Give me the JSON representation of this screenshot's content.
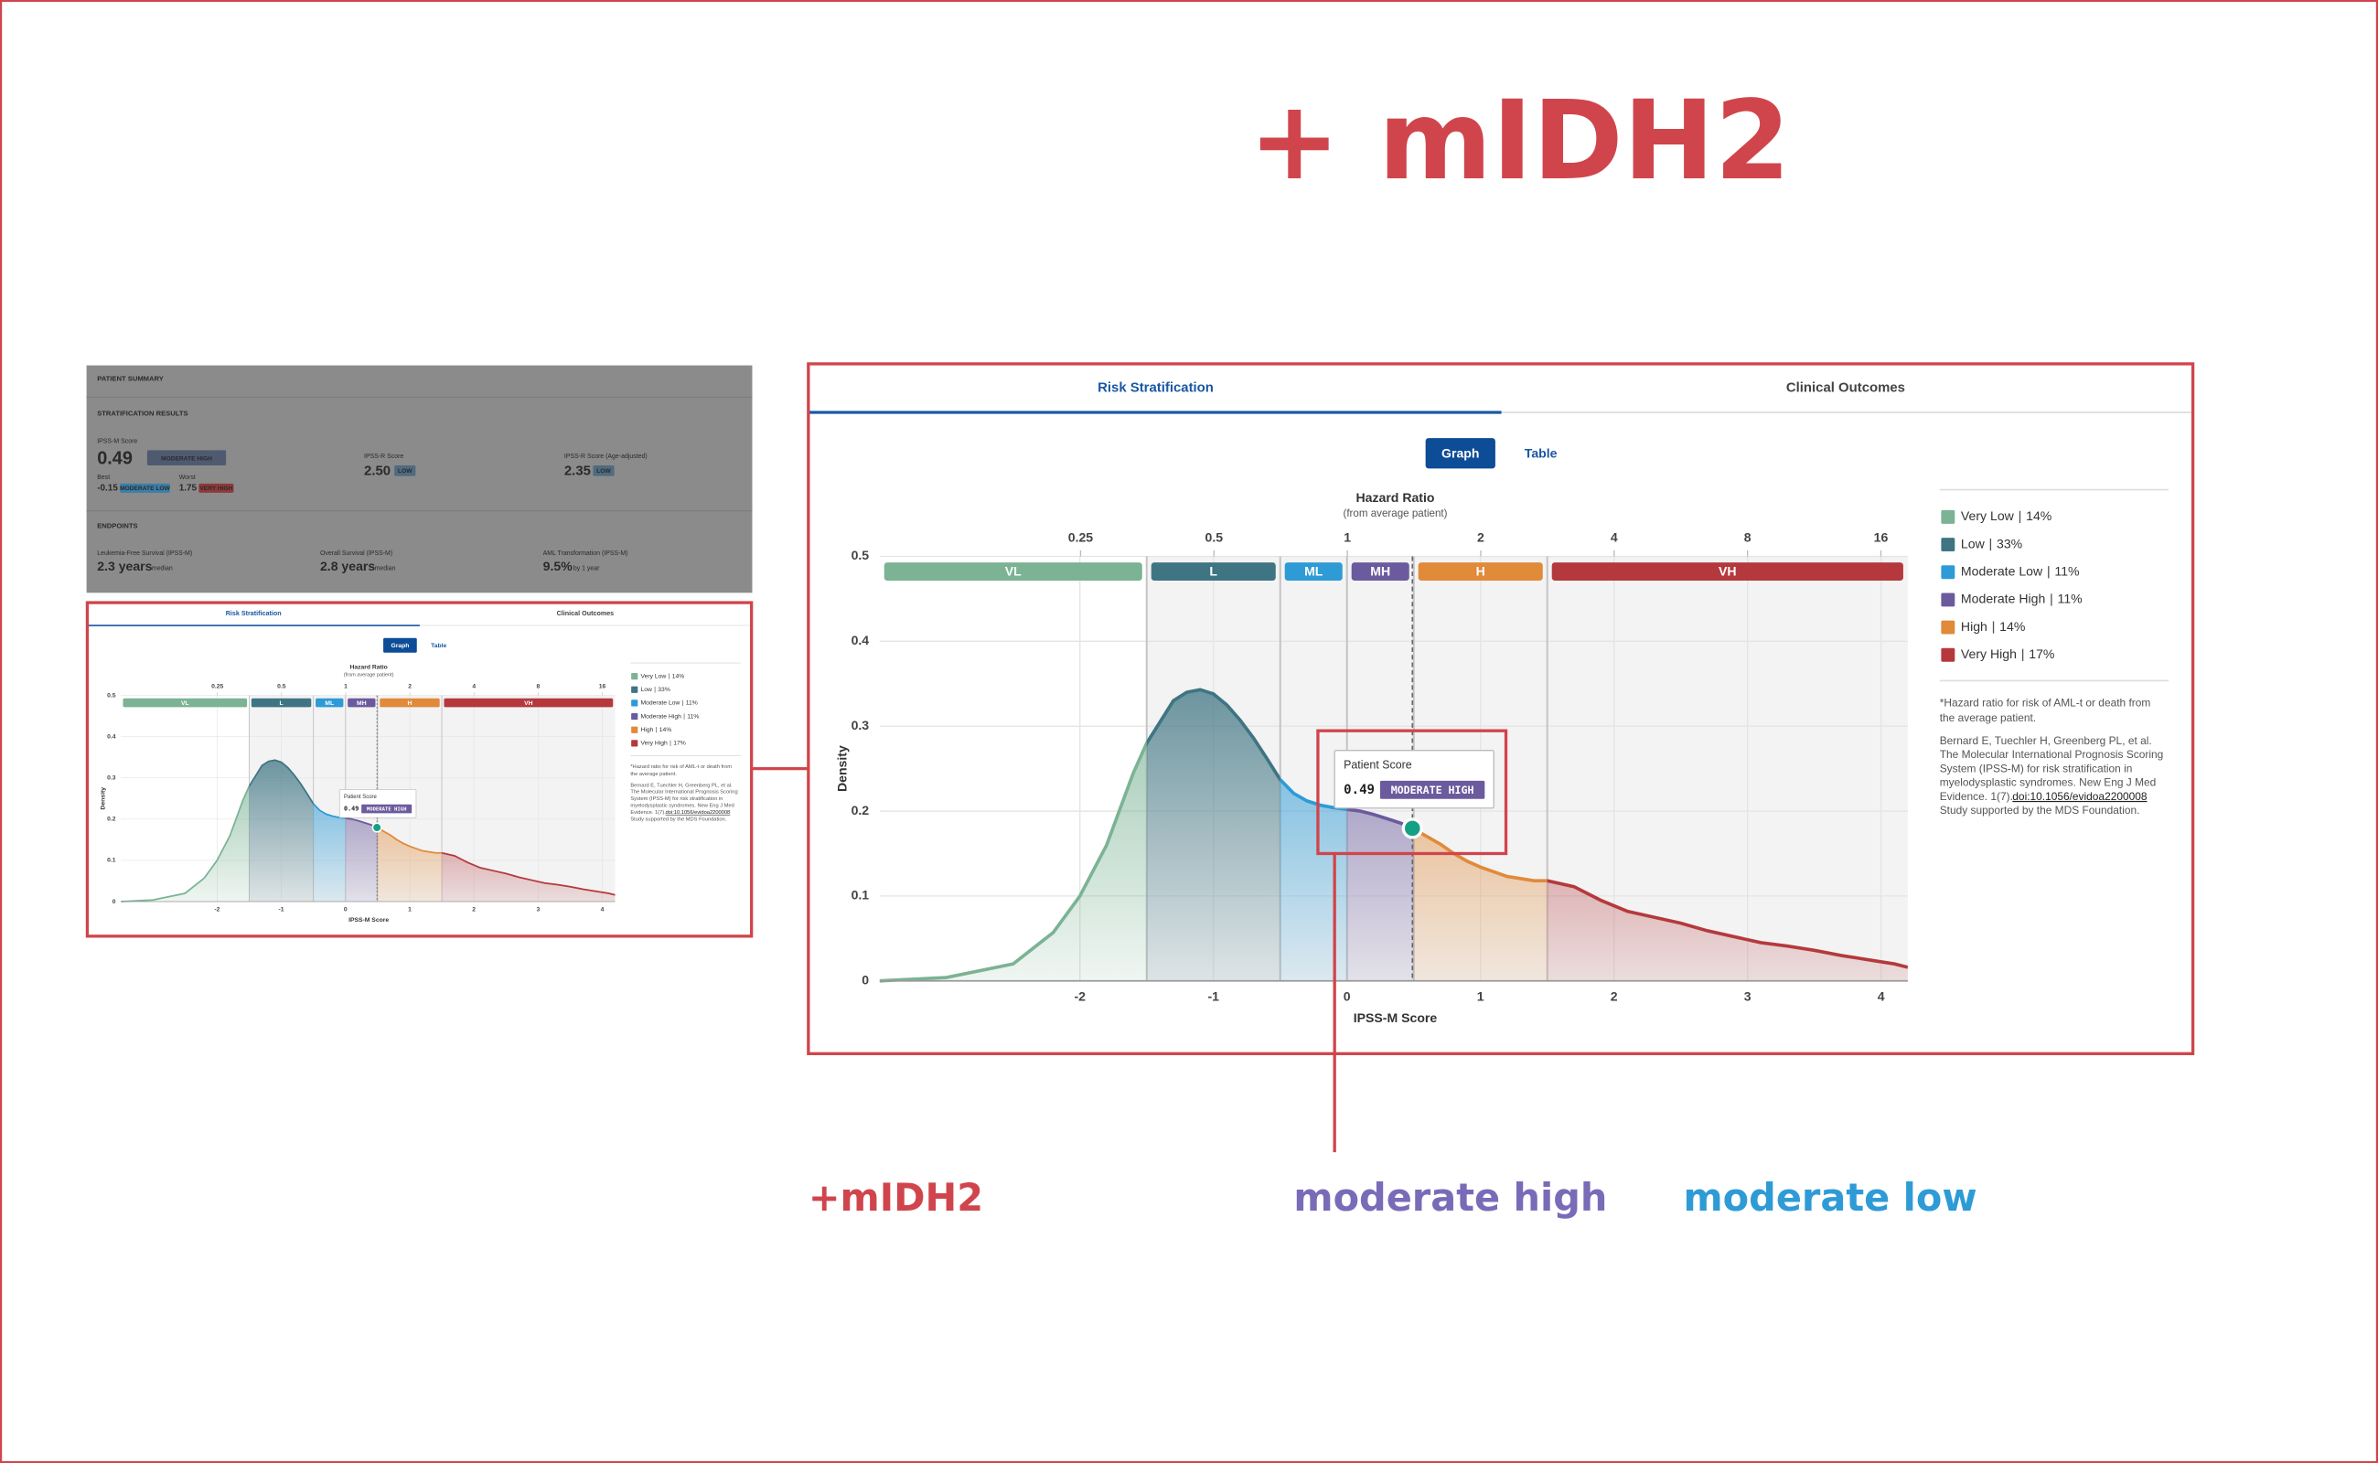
{
  "title": "+ mIDH2",
  "annotations": [
    {
      "text": "+mIDH2",
      "color": "#d0454c"
    },
    {
      "text": "moderate high",
      "color": "#7a6bb8"
    },
    {
      "text": "moderate low",
      "color": "#2e9bd6"
    }
  ],
  "summary": {
    "sections": [
      "PATIENT SUMMARY",
      "STRATIFICATION RESULTS",
      "ENDPOINTS"
    ],
    "ipss_m": {
      "label": "IPSS-M Score",
      "value": "0.49",
      "category": "MODERATE HIGH",
      "best_label": "Best",
      "best": "-0.15",
      "best_category": "MODERATE LOW",
      "worst_label": "Worst",
      "worst": "1.75",
      "worst_category": "VERY HIGH"
    },
    "ipss_r": {
      "label": "IPSS-R Score",
      "value": "2.50",
      "category": "LOW"
    },
    "ipss_r_age": {
      "label": "IPSS-R Score (Age-adjusted)",
      "value": "2.35",
      "category": "LOW"
    },
    "endpoints": [
      {
        "label": "Leukemia-Free Survival (IPSS-M)",
        "value": "2.3 years",
        "unit": "median"
      },
      {
        "label": "Overall Survival (IPSS-M)",
        "value": "2.8 years",
        "unit": "median"
      },
      {
        "label": "AML Transformation (IPSS-M)",
        "value": "9.5%",
        "unit": "by 1 year"
      }
    ]
  },
  "chart_data": {
    "type": "area",
    "tabs": [
      "Risk Stratification",
      "Clinical Outcomes"
    ],
    "buttons": [
      "Graph",
      "Table"
    ],
    "x_label": "IPSS-M Score",
    "y_label": "Density",
    "x2_label": "Hazard Ratio",
    "x2_sublabel": "(from average patient)",
    "x": [
      -3.5,
      -3,
      -2.5,
      -2.2,
      -2,
      -1.8,
      -1.6,
      -1.5,
      -1.3,
      -1.2,
      -1.1,
      -1,
      -0.9,
      -0.8,
      -0.7,
      -0.6,
      -0.5,
      -0.4,
      -0.3,
      -0.2,
      -0.1,
      0,
      0.1,
      0.2,
      0.3,
      0.4,
      0.5,
      0.6,
      0.7,
      0.8,
      0.9,
      1,
      1.2,
      1.4,
      1.5,
      1.7,
      1.9,
      2.1,
      2.3,
      2.5,
      2.7,
      2.9,
      3.1,
      3.3,
      3.5,
      3.7,
      3.9,
      4.1,
      4.2
    ],
    "values": [
      0,
      0.004,
      0.02,
      0.057,
      0.1,
      0.16,
      0.245,
      0.28,
      0.33,
      0.34,
      0.343,
      0.338,
      0.325,
      0.307,
      0.286,
      0.262,
      0.237,
      0.221,
      0.212,
      0.207,
      0.204,
      0.202,
      0.2,
      0.196,
      0.191,
      0.186,
      0.179,
      0.17,
      0.161,
      0.15,
      0.141,
      0.134,
      0.123,
      0.118,
      0.118,
      0.111,
      0.095,
      0.082,
      0.075,
      0.068,
      0.059,
      0.052,
      0.045,
      0.041,
      0.036,
      0.03,
      0.025,
      0.02,
      0.016
    ],
    "xlim": [
      -3.5,
      4.2
    ],
    "xticks": [
      -2,
      -1,
      0,
      1,
      2,
      3,
      4
    ],
    "ylim": [
      0,
      0.5
    ],
    "yticks": [
      0,
      0.1,
      0.2,
      0.3,
      0.4,
      0.5
    ],
    "x2scale": "log",
    "x2lim": [
      0.088,
      18.4
    ],
    "x2ticks": [
      0.25,
      0.5,
      1,
      2,
      4,
      8,
      16
    ],
    "grid": true,
    "risk_groups": [
      {
        "short": "VL",
        "name": "Very Low",
        "value": 14,
        "value_label": "14%",
        "color": "#7bb394",
        "range": [
          -3.5,
          -1.5
        ]
      },
      {
        "short": "L",
        "name": "Low",
        "value": 33,
        "value_label": "33%",
        "color": "#3f7583",
        "range": [
          -1.5,
          -0.5
        ]
      },
      {
        "short": "ML",
        "name": "Moderate Low",
        "value": 11,
        "value_label": "11%",
        "color": "#2e9bd6",
        "range": [
          -0.5,
          0
        ]
      },
      {
        "short": "MH",
        "name": "Moderate High",
        "value": 11,
        "value_label": "11%",
        "color": "#6b5b9e",
        "range": [
          0,
          0.5
        ]
      },
      {
        "short": "H",
        "name": "High",
        "value": 14,
        "value_label": "14%",
        "color": "#e08a3a",
        "range": [
          0.5,
          1.5
        ]
      },
      {
        "short": "VH",
        "name": "Very High",
        "value": 17,
        "value_label": "17%",
        "color": "#b5393c",
        "range": [
          1.5,
          4.2
        ]
      }
    ],
    "patient_score": {
      "label": "Patient Score",
      "value": 0.49,
      "category": "MODERATE HIGH",
      "color": "#14a085"
    },
    "footnote": {
      "note": [
        "*Hazard ratio for risk of AML-t or death from",
        "the average patient."
      ],
      "reference": [
        "Bernard E, Tuechler H, Greenberg PL, et al.",
        "The Molecular International Prognosis Scoring",
        "System (IPSS-M) for risk stratification in",
        "myelodysplastic syndromes. New Eng J Med",
        "Evidence. 1(7)."
      ],
      "doi": "doi:10.1056/evidoa2200008",
      "support": "Study supported by the MDS Foundation."
    }
  }
}
